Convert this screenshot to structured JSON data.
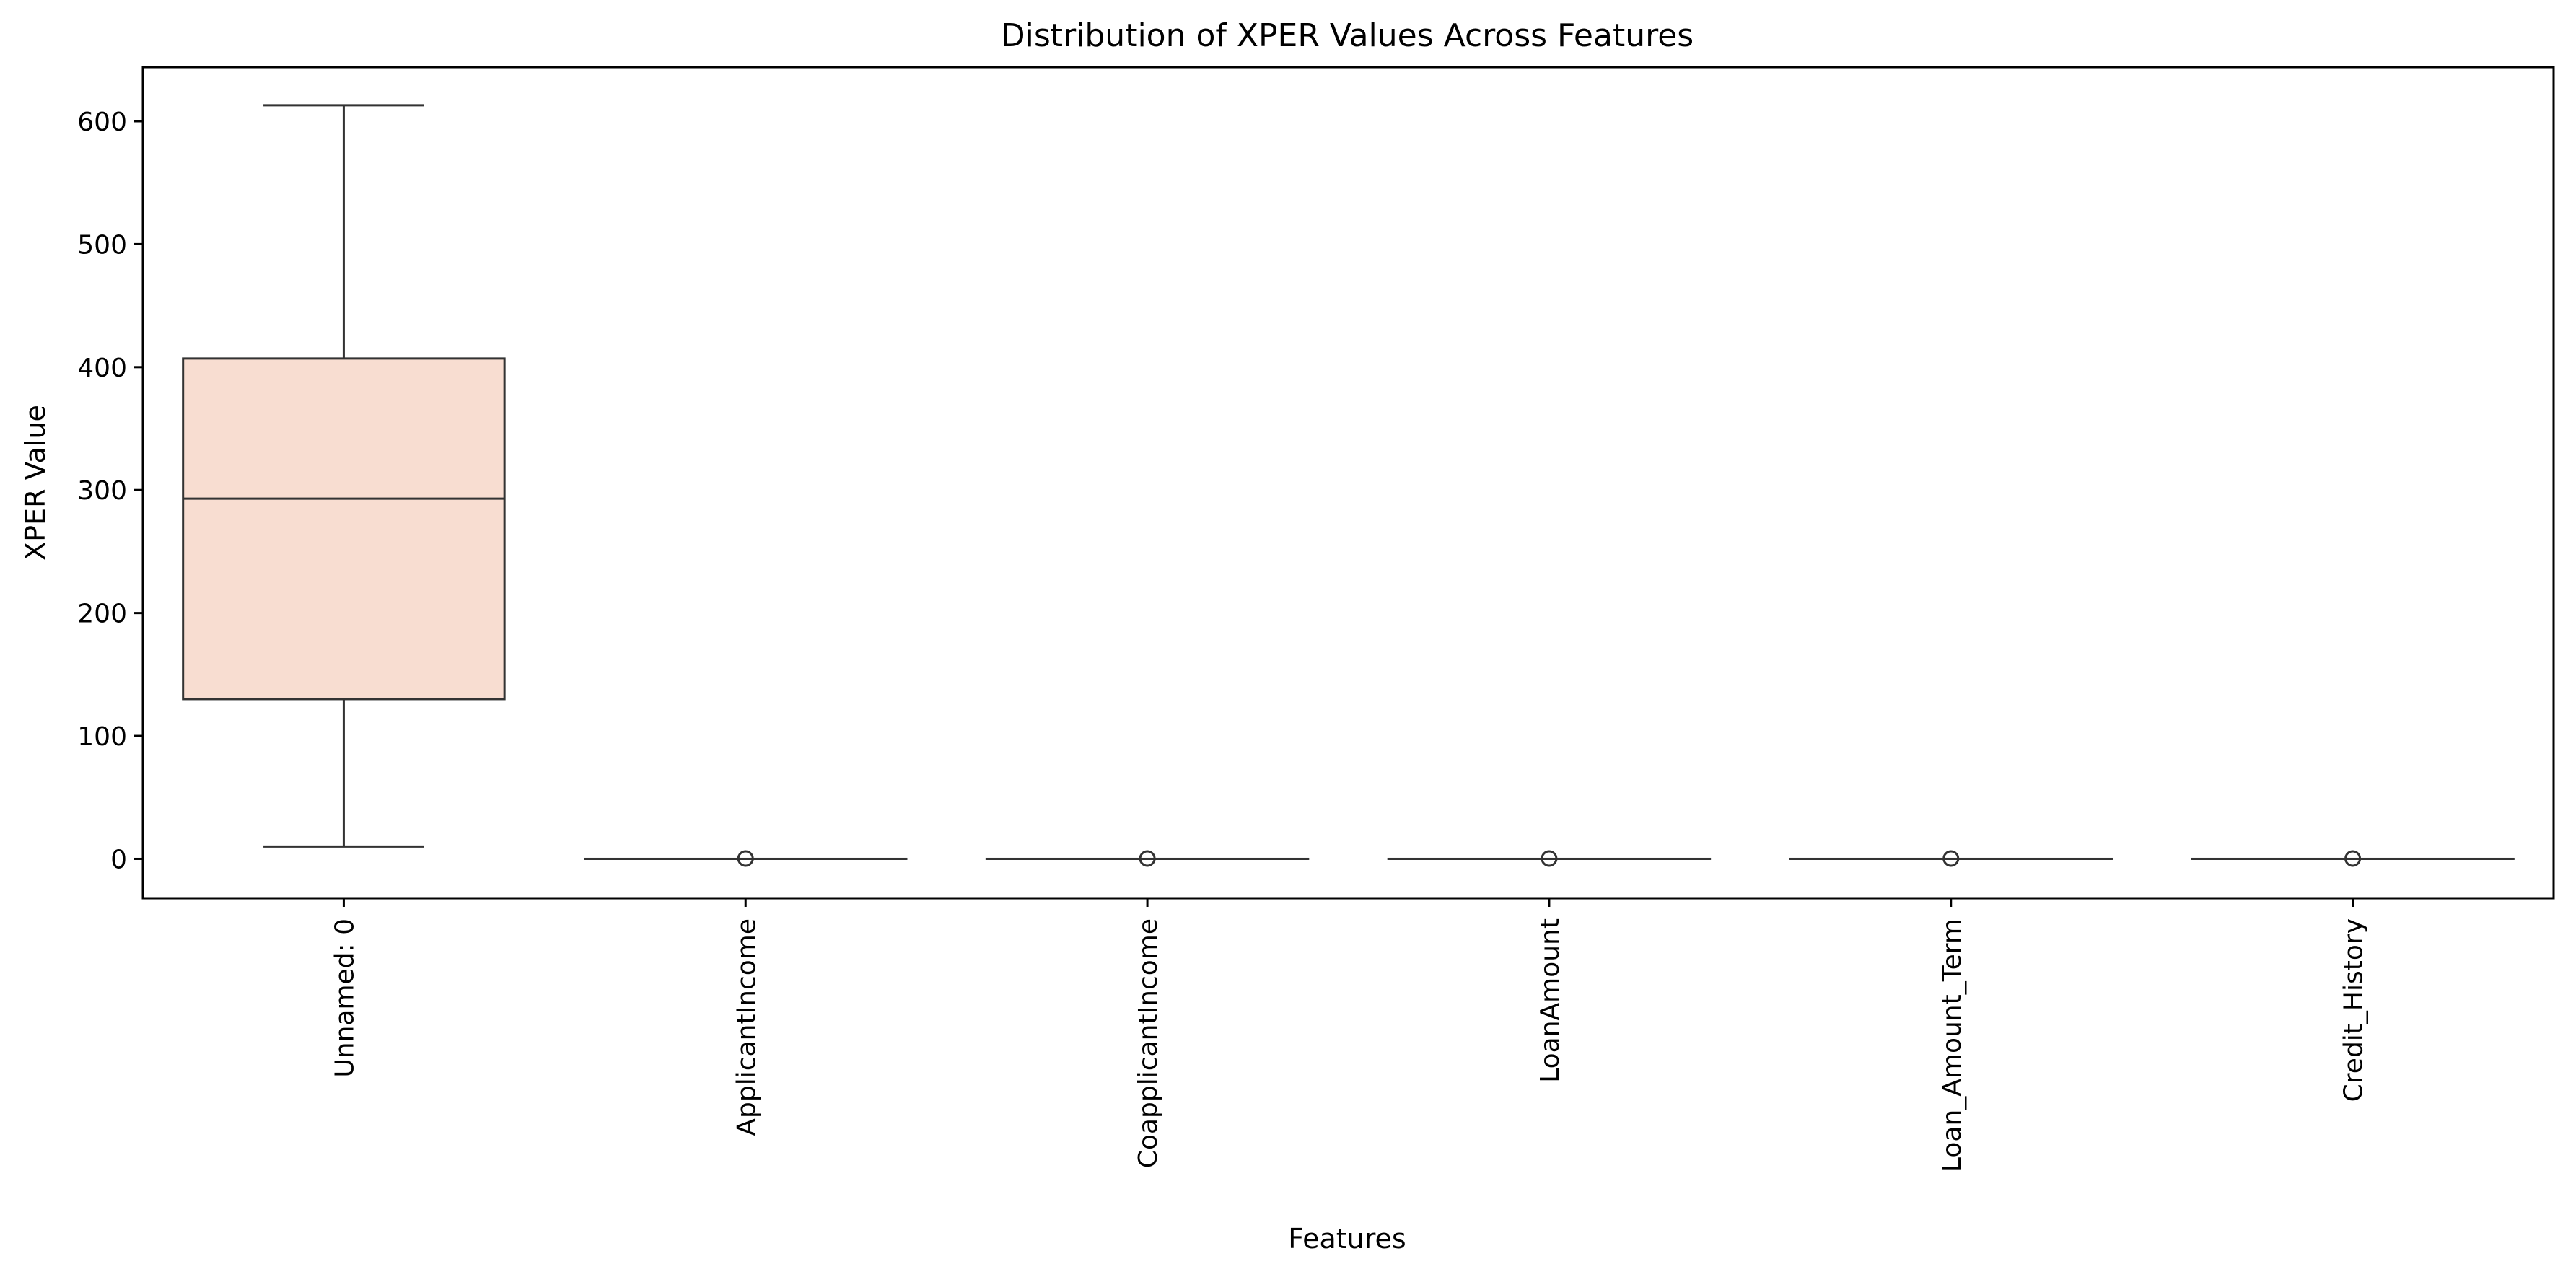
{
  "chart_data": {
    "type": "box",
    "title": "Distribution of XPER Values Across Features",
    "xlabel": "Features",
    "ylabel": "XPER Value",
    "ylim": [
      -32,
      644
    ],
    "yticks": [
      0,
      100,
      200,
      300,
      400,
      500,
      600
    ],
    "grid": false,
    "legend": "none",
    "box_color": "#f8ddd1",
    "line_color": "#333333",
    "categories": [
      "Unnamed: 0",
      "ApplicantIncome",
      "CoapplicantIncome",
      "LoanAmount",
      "Loan_Amount_Term",
      "Credit_History"
    ],
    "boxes": [
      {
        "whisker_low": 10,
        "q1": 130,
        "median": 293,
        "q3": 407,
        "whisker_high": 613,
        "outliers": []
      },
      {
        "whisker_low": 0,
        "q1": 0,
        "median": 0,
        "q3": 0,
        "whisker_high": 0,
        "outliers": [
          0.3
        ]
      },
      {
        "whisker_low": 0,
        "q1": 0,
        "median": 0,
        "q3": 0,
        "whisker_high": 0,
        "outliers": [
          0.3
        ]
      },
      {
        "whisker_low": 0,
        "q1": 0,
        "median": 0,
        "q3": 0,
        "whisker_high": 0,
        "outliers": [
          0.3
        ]
      },
      {
        "whisker_low": 0,
        "q1": 0,
        "median": 0,
        "q3": 0,
        "whisker_high": 0,
        "outliers": [
          0.3
        ]
      },
      {
        "whisker_low": 0,
        "q1": 0,
        "median": 0,
        "q3": 0,
        "whisker_high": 0,
        "outliers": [
          0.3
        ]
      }
    ]
  }
}
